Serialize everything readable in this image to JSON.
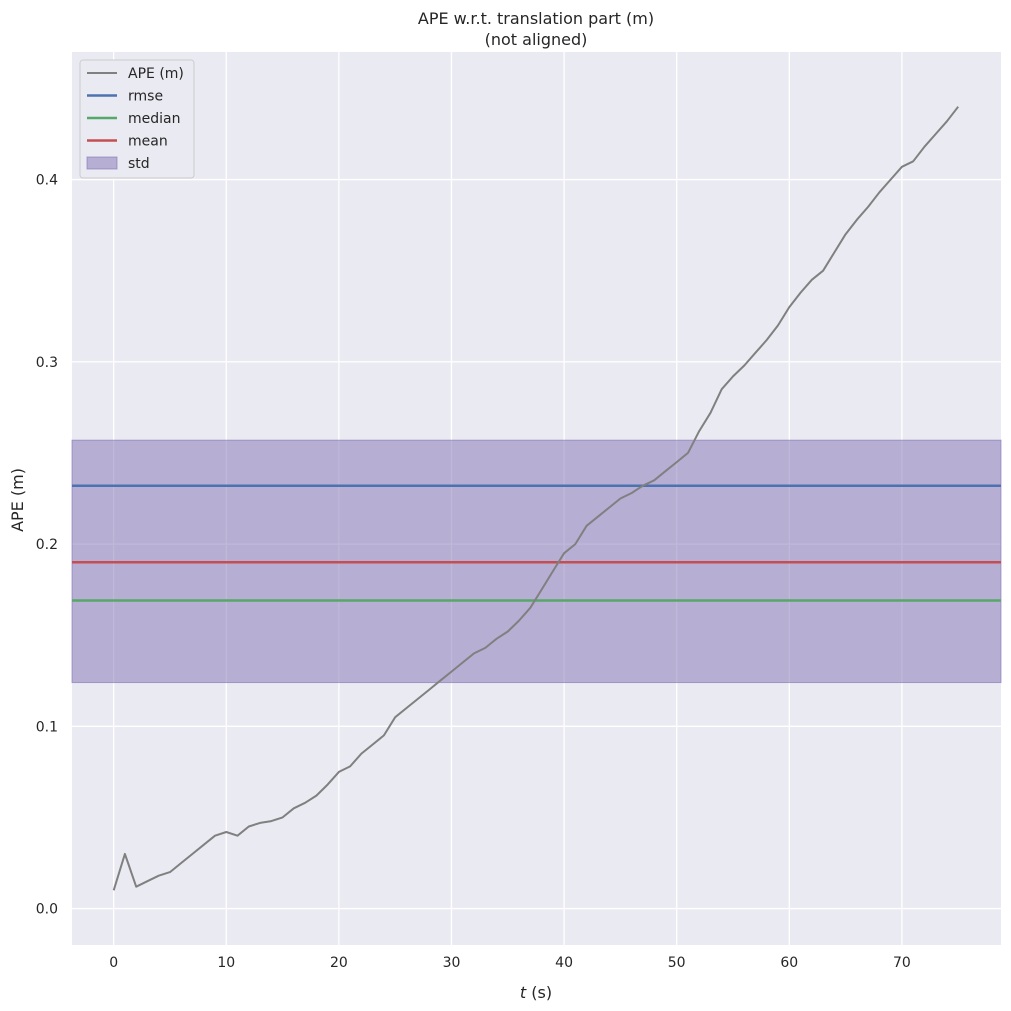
{
  "chart_data": {
    "type": "line",
    "title": "APE w.r.t. translation part (m)",
    "subtitle": "(not aligned)",
    "xlabel_italic": "t",
    "xlabel_unit": " (s)",
    "ylabel": "APE (m)",
    "xlim": [
      -3.7,
      78.8
    ],
    "ylim": [
      -0.02,
      0.47
    ],
    "xticks": [
      0,
      10,
      20,
      30,
      40,
      50,
      60,
      70
    ],
    "yticks": [
      0.0,
      0.1,
      0.2,
      0.3,
      0.4
    ],
    "xtick_labels": [
      "0",
      "10",
      "20",
      "30",
      "40",
      "50",
      "60",
      "70"
    ],
    "ytick_labels": [
      "0.0",
      "0.1",
      "0.2",
      "0.3",
      "0.4"
    ],
    "grid": true,
    "legend_position": "top-left",
    "series": [
      {
        "name": "APE (m)",
        "color": "#808080",
        "x": [
          0,
          1,
          2,
          3,
          4,
          5,
          6,
          7,
          8,
          9,
          10,
          11,
          12,
          13,
          14,
          15,
          16,
          17,
          18,
          19,
          20,
          21,
          22,
          23,
          24,
          25,
          26,
          27,
          28,
          29,
          30,
          31,
          32,
          33,
          34,
          35,
          36,
          37,
          38,
          39,
          40,
          41,
          42,
          43,
          44,
          45,
          46,
          47,
          48,
          49,
          50,
          51,
          52,
          53,
          54,
          55,
          56,
          57,
          58,
          59,
          60,
          61,
          62,
          63,
          64,
          65,
          66,
          67,
          68,
          69,
          70,
          71,
          72,
          73,
          74,
          75
        ],
        "y": [
          0.01,
          0.03,
          0.012,
          0.015,
          0.018,
          0.02,
          0.025,
          0.03,
          0.035,
          0.04,
          0.042,
          0.04,
          0.045,
          0.047,
          0.048,
          0.05,
          0.055,
          0.058,
          0.062,
          0.068,
          0.075,
          0.078,
          0.085,
          0.09,
          0.095,
          0.105,
          0.11,
          0.115,
          0.12,
          0.125,
          0.13,
          0.135,
          0.14,
          0.143,
          0.148,
          0.152,
          0.158,
          0.165,
          0.175,
          0.185,
          0.195,
          0.2,
          0.21,
          0.215,
          0.22,
          0.225,
          0.228,
          0.232,
          0.235,
          0.24,
          0.245,
          0.25,
          0.262,
          0.272,
          0.285,
          0.292,
          0.298,
          0.305,
          0.312,
          0.32,
          0.33,
          0.338,
          0.345,
          0.35,
          0.36,
          0.37,
          0.378,
          0.385,
          0.393,
          0.4,
          0.407,
          0.41,
          0.418,
          0.425,
          0.432,
          0.44
        ]
      },
      {
        "name": "rmse",
        "color": "#4c72b0",
        "value": 0.232
      },
      {
        "name": "median",
        "color": "#55a868",
        "value": 0.169
      },
      {
        "name": "mean",
        "color": "#c44e52",
        "value": 0.19
      },
      {
        "name": "std",
        "color": "#8172b3",
        "range": [
          0.124,
          0.257
        ]
      }
    ]
  }
}
